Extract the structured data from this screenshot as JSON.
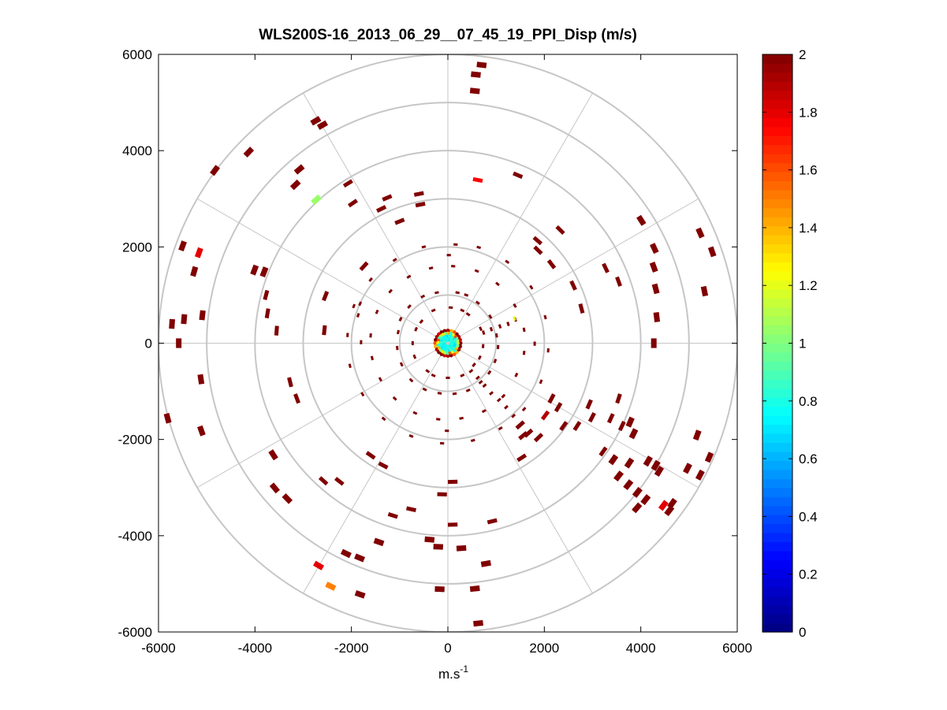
{
  "chart_data": {
    "type": "scatter",
    "subtype": "polar-ppi",
    "title": "WLS200S-16_2013_06_29__07_45_19_PPI_Disp (m/s)",
    "xlabel": "m.s",
    "xlabel_sup": "-1",
    "ylabel": "",
    "xlim": [
      -6000,
      6000
    ],
    "ylim": [
      -6000,
      6000
    ],
    "xticks": [
      -6000,
      -4000,
      -2000,
      0,
      2000,
      4000,
      6000
    ],
    "yticks": [
      6000,
      4000,
      2000,
      0,
      -2000,
      -4000,
      -6000
    ],
    "rings": [
      1000,
      2000,
      3000,
      4000,
      5000,
      6000
    ],
    "spokes_deg": [
      0,
      30,
      60,
      90,
      120,
      150,
      180,
      210,
      240,
      270,
      300,
      330
    ],
    "grid": true,
    "colorbar": {
      "min": 0,
      "max": 2,
      "ticks": [
        0,
        0.2,
        0.4,
        0.6,
        0.8,
        1,
        1.2,
        1.4,
        1.6,
        1.8,
        2
      ],
      "colormap": "jet"
    },
    "points": [
      [
        700,
        5780,
        2
      ],
      [
        580,
        5580,
        2
      ],
      [
        560,
        5240,
        2
      ],
      [
        -2740,
        4620,
        2
      ],
      [
        -2600,
        4530,
        2
      ],
      [
        -4130,
        3970,
        2
      ],
      [
        -4830,
        3590,
        2
      ],
      [
        -3080,
        3610,
        2
      ],
      [
        -3160,
        3290,
        2
      ],
      [
        -2070,
        3320,
        2
      ],
      [
        -2730,
        2980,
        1.05
      ],
      [
        -1970,
        2910,
        2
      ],
      [
        -1260,
        3020,
        2
      ],
      [
        -1380,
        2790,
        2
      ],
      [
        -600,
        3100,
        2
      ],
      [
        -570,
        2880,
        2
      ],
      [
        -1000,
        2530,
        2
      ],
      [
        620,
        3390,
        1.75
      ],
      [
        1450,
        3490,
        2
      ],
      [
        1860,
        2130,
        2
      ],
      [
        1870,
        1930,
        2
      ],
      [
        2330,
        2350,
        2
      ],
      [
        4010,
        2550,
        2
      ],
      [
        4280,
        1970,
        2
      ],
      [
        4270,
        1580,
        2
      ],
      [
        5230,
        2290,
        2
      ],
      [
        5480,
        1900,
        2
      ],
      [
        5320,
        1080,
        2
      ],
      [
        4330,
        540,
        2
      ],
      [
        4270,
        0,
        2
      ],
      [
        3270,
        1560,
        2
      ],
      [
        3540,
        1280,
        2
      ],
      [
        4310,
        1130,
        2
      ],
      [
        2600,
        1200,
        2
      ],
      [
        2770,
        720,
        2
      ],
      [
        2150,
        1640,
        2
      ],
      [
        -5500,
        2020,
        2
      ],
      [
        -5160,
        1880,
        1.8
      ],
      [
        -5260,
        1490,
        2
      ],
      [
        -4010,
        1520,
        2
      ],
      [
        -3810,
        1480,
        2
      ],
      [
        -3770,
        1000,
        2
      ],
      [
        -3740,
        620,
        2
      ],
      [
        -3550,
        260,
        2
      ],
      [
        -2540,
        980,
        2
      ],
      [
        -2560,
        270,
        2
      ],
      [
        -1820,
        820,
        2
      ],
      [
        -1860,
        580,
        2
      ],
      [
        -1740,
        1600,
        2
      ],
      [
        -3270,
        -810,
        2
      ],
      [
        -3130,
        -1150,
        2
      ],
      [
        -5090,
        580,
        2
      ],
      [
        -5470,
        500,
        2
      ],
      [
        -5720,
        400,
        2
      ],
      [
        -5580,
        0,
        2
      ],
      [
        -5120,
        -750,
        2
      ],
      [
        -5110,
        -1820,
        2
      ],
      [
        -5810,
        -1560,
        2
      ],
      [
        -3620,
        -2320,
        2
      ],
      [
        -2580,
        -2860,
        2
      ],
      [
        -2250,
        -2870,
        2
      ],
      [
        -3590,
        -3010,
        2
      ],
      [
        -3330,
        -3230,
        2
      ],
      [
        -1600,
        -2330,
        2
      ],
      [
        -1340,
        -2540,
        2
      ],
      [
        -1140,
        -3580,
        2
      ],
      [
        -760,
        -3450,
        2
      ],
      [
        -120,
        -3140,
        2
      ],
      [
        100,
        -2880,
        2
      ],
      [
        -380,
        -4080,
        2
      ],
      [
        -200,
        -4230,
        2
      ],
      [
        100,
        -3770,
        2
      ],
      [
        280,
        -4260,
        2
      ],
      [
        920,
        -3700,
        2
      ],
      [
        790,
        -4580,
        2
      ],
      [
        -2110,
        -4370,
        2
      ],
      [
        -1830,
        -4460,
        2
      ],
      [
        -1430,
        -4130,
        2
      ],
      [
        -2680,
        -4620,
        1.8
      ],
      [
        -2430,
        -5050,
        1.5
      ],
      [
        -1820,
        -5220,
        2
      ],
      [
        -170,
        -5110,
        2
      ],
      [
        560,
        -5100,
        2
      ],
      [
        630,
        -5820,
        2
      ],
      [
        2150,
        -1150,
        2
      ],
      [
        2290,
        -1330,
        2
      ],
      [
        2020,
        -1500,
        1.9
      ],
      [
        1560,
        -1920,
        2
      ],
      [
        1530,
        -2380,
        2
      ],
      [
        2400,
        -1720,
        2
      ],
      [
        2680,
        -1720,
        2
      ],
      [
        2930,
        -1270,
        2
      ],
      [
        2990,
        -1540,
        2
      ],
      [
        3380,
        -1560,
        2
      ],
      [
        3610,
        -1720,
        2
      ],
      [
        3850,
        -1880,
        2
      ],
      [
        3220,
        -2250,
        2
      ],
      [
        3430,
        -2420,
        2
      ],
      [
        3540,
        -2760,
        2
      ],
      [
        3760,
        -2490,
        2
      ],
      [
        4150,
        -2450,
        2
      ],
      [
        4310,
        -2540,
        2
      ],
      [
        3740,
        -2940,
        2
      ],
      [
        3930,
        -3100,
        2
      ],
      [
        3920,
        -3420,
        2
      ],
      [
        4100,
        -3250,
        2
      ],
      [
        4470,
        -3370,
        1.8
      ],
      [
        4380,
        -2660,
        2
      ],
      [
        4650,
        -3330,
        2
      ],
      [
        4970,
        -2600,
        2
      ],
      [
        4590,
        -3480,
        2
      ],
      [
        5230,
        -2740,
        2
      ],
      [
        5420,
        -2370,
        2
      ],
      [
        5170,
        -1910,
        2
      ],
      [
        3780,
        -1640,
        2
      ],
      [
        3540,
        -1150,
        2
      ],
      [
        1880,
        -1960,
        2
      ],
      [
        1670,
        -1870,
        2
      ],
      [
        1500,
        -1700,
        2
      ],
      [
        1360,
        -1510,
        2
      ],
      [
        1210,
        -1330,
        2
      ],
      [
        1060,
        -1180,
        2
      ],
      [
        900,
        -1040,
        2
      ],
      [
        760,
        -880,
        2
      ],
      [
        620,
        -720,
        2
      ],
      [
        480,
        -580,
        2
      ],
      [
        1400,
        490,
        2
      ],
      [
        1250,
        400,
        2
      ],
      [
        1080,
        350,
        2
      ],
      [
        900,
        290,
        2
      ],
      [
        740,
        220,
        2
      ],
      [
        1380,
        510,
        1.2
      ],
      [
        200,
        1050,
        2
      ],
      [
        -230,
        1050,
        2
      ],
      [
        -520,
        970,
        2
      ],
      [
        -800,
        760,
        2
      ],
      [
        -980,
        500,
        2
      ],
      [
        -1030,
        230,
        2
      ],
      [
        -1050,
        -100,
        2
      ],
      [
        -960,
        -440,
        2
      ],
      [
        -760,
        -770,
        2
      ],
      [
        -480,
        -960,
        2
      ],
      [
        -170,
        -1040,
        2
      ],
      [
        140,
        -1050,
        2
      ],
      [
        420,
        -980,
        2
      ],
      [
        680,
        -810,
        2
      ],
      [
        860,
        -610,
        2
      ],
      [
        980,
        -370,
        2
      ],
      [
        1040,
        -80,
        2
      ],
      [
        1010,
        160,
        2
      ],
      [
        880,
        550,
        2
      ],
      [
        620,
        840,
        2
      ],
      [
        380,
        1000,
        2
      ],
      [
        110,
        1600,
        2
      ],
      [
        -350,
        1560,
        2
      ],
      [
        -810,
        1380,
        2
      ],
      [
        -1190,
        1080,
        2
      ],
      [
        -1470,
        650,
        2
      ],
      [
        -1600,
        160,
        2
      ],
      [
        -1570,
        -310,
        2
      ],
      [
        -1400,
        -750,
        2
      ],
      [
        -1100,
        -1150,
        2
      ],
      [
        -680,
        -1450,
        2
      ],
      [
        -200,
        -1580,
        2
      ],
      [
        280,
        -1560,
        2
      ],
      [
        750,
        -1410,
        2
      ],
      [
        1150,
        -1100,
        2
      ],
      [
        1420,
        -660,
        2
      ],
      [
        1580,
        -200,
        2
      ],
      [
        1580,
        280,
        2
      ],
      [
        1390,
        780,
        2
      ],
      [
        1030,
        1230,
        2
      ],
      [
        600,
        1500,
        2
      ],
      [
        160,
        2050,
        2
      ],
      [
        -500,
        2000,
        2
      ],
      [
        -1100,
        1730,
        2
      ],
      [
        -1600,
        1320,
        2
      ],
      [
        -1950,
        770,
        2
      ],
      [
        -2080,
        170,
        2
      ],
      [
        -2030,
        -470,
        2
      ],
      [
        -1770,
        -1060,
        2
      ],
      [
        -1330,
        -1570,
        2
      ],
      [
        -760,
        -1930,
        2
      ],
      [
        -120,
        -2080,
        2
      ],
      [
        520,
        -2020,
        2
      ],
      [
        1090,
        -1770,
        2
      ],
      [
        1580,
        -1370,
        2
      ],
      [
        1930,
        -800,
        2
      ],
      [
        2080,
        -150,
        2
      ],
      [
        2020,
        540,
        2
      ],
      [
        1730,
        1160,
        2
      ],
      [
        1230,
        1690,
        2
      ],
      [
        640,
        1990,
        2
      ],
      [
        -300,
        680,
        2
      ],
      [
        300,
        680,
        2
      ],
      [
        -660,
        290,
        2
      ],
      [
        -690,
        -280,
        2
      ],
      [
        -300,
        -670,
        2
      ],
      [
        300,
        -670,
        2
      ],
      [
        660,
        -300,
        2
      ],
      [
        680,
        300,
        2
      ],
      [
        -550,
        450,
        2
      ],
      [
        -420,
        -580,
        2
      ],
      [
        540,
        -450,
        2
      ],
      [
        420,
        600,
        2
      ],
      [
        60,
        740,
        2
      ],
      [
        -730,
        0,
        2
      ],
      [
        0,
        -720,
        2
      ],
      [
        730,
        -60,
        2
      ],
      [
        1800,
        -10,
        2
      ],
      [
        -1800,
        20,
        2
      ],
      [
        20,
        1830,
        2
      ],
      [
        -20,
        -1820,
        2
      ]
    ]
  }
}
